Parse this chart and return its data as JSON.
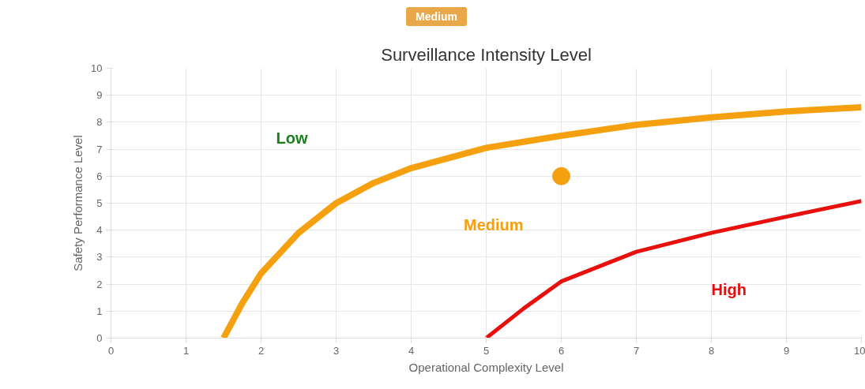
{
  "chart_data": {
    "type": "line",
    "title": "Surveillance Intensity Level",
    "xlabel": "Operational Complexity Level",
    "ylabel": "Safety Performance Level",
    "xlim": [
      0,
      10
    ],
    "ylim": [
      0,
      10
    ],
    "xticks": [
      0,
      1,
      2,
      3,
      4,
      5,
      6,
      7,
      8,
      9,
      10
    ],
    "yticks": [
      0,
      1,
      2,
      3,
      4,
      5,
      6,
      7,
      8,
      9,
      10
    ],
    "grid": true,
    "series": [
      {
        "color": "#f5a00f",
        "x": [
          1.5,
          1.75,
          2,
          2.5,
          3,
          3.5,
          4,
          5,
          6,
          7,
          8,
          9,
          10
        ],
        "values": [
          0,
          1.3,
          2.4,
          3.9,
          5.0,
          5.75,
          6.3,
          7.05,
          7.5,
          7.9,
          8.18,
          8.4,
          8.55
        ]
      },
      {
        "color": "#e8100c",
        "x": [
          5,
          5.5,
          6,
          7,
          8,
          9,
          10
        ],
        "values": [
          0,
          1.1,
          2.1,
          3.2,
          3.9,
          4.5,
          5.08
        ]
      },
      {
        "type": "scatter",
        "color": "#f5a00f",
        "x": [
          6
        ],
        "values": [
          6
        ]
      }
    ],
    "annotations": [
      "Medium",
      "Low",
      "Medium",
      "High"
    ]
  }
}
